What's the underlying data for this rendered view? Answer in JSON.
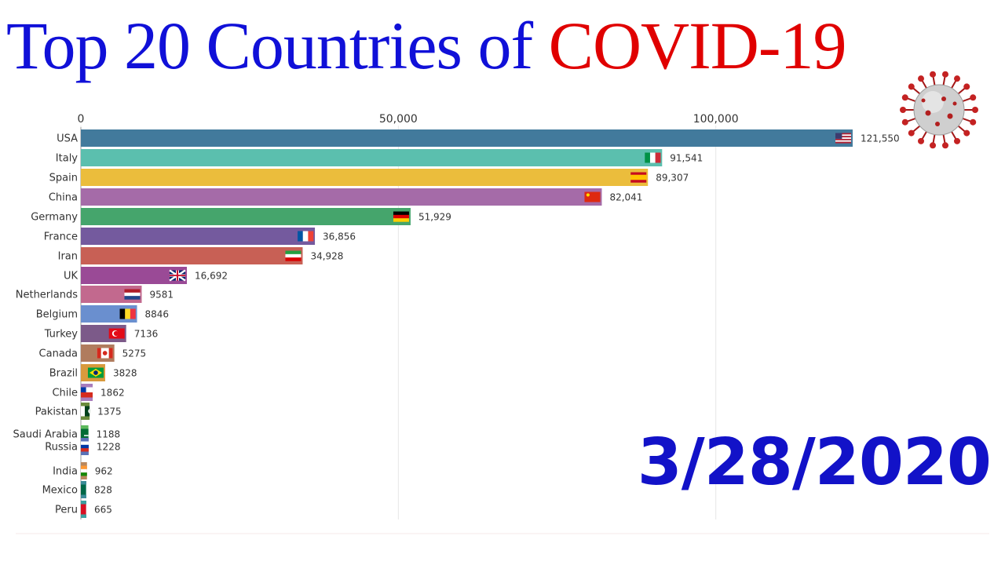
{
  "title": {
    "part1": "Top 20 Countries of ",
    "part2": "COVID-19"
  },
  "date": "3/28/2020",
  "colors": {
    "title_blue": "#1010d8",
    "title_red": "#e00000",
    "date_blue": "#1212c8"
  },
  "icons": [
    "coronavirus-icon",
    "flag-icon"
  ],
  "chart_data": {
    "type": "bar",
    "orientation": "horizontal",
    "title": "Top 20 Countries of COVID-19",
    "xlim": [
      0,
      125000
    ],
    "xticks": [
      0,
      50000,
      100000
    ],
    "xtick_labels": [
      "0",
      "50,000",
      "100,000"
    ],
    "grid": true,
    "categories": [
      "USA",
      "Italy",
      "Spain",
      "China",
      "Germany",
      "France",
      "Iran",
      "UK",
      "Netherlands",
      "Belgium",
      "Turkey",
      "Canada",
      "Brazil",
      "Chile",
      "Pakistan",
      "Saudi Arabia",
      "Russia",
      "India",
      "Mexico",
      "Peru"
    ],
    "values": [
      121550,
      91541,
      89307,
      82041,
      51929,
      36856,
      34928,
      16692,
      9581,
      8846,
      7136,
      5275,
      3828,
      1862,
      1375,
      1188,
      1228,
      962,
      828,
      665
    ],
    "value_labels": [
      "121,550",
      "91,541",
      "89,307",
      "82,041",
      "51,929",
      "36,856",
      "34,928",
      "16,692",
      "9581",
      "8846",
      "7136",
      "5275",
      "3828",
      "1862",
      "1375",
      "1188",
      "1228",
      "962",
      "828",
      "665"
    ],
    "bar_colors": [
      "#427a9c",
      "#5bbfae",
      "#ebbd3c",
      "#a56ba8",
      "#45a56c",
      "#745a9e",
      "#c86055",
      "#9a4a96",
      "#c2698e",
      "#6a8fcf",
      "#7c5a89",
      "#b07c5e",
      "#d99a3c",
      "#a97dbc",
      "#6b8c3c",
      "#5cb85c",
      "#5a72b8",
      "#b9885e",
      "#3c8c98",
      "#3ca0a0"
    ],
    "flags": [
      "us",
      "it",
      "es",
      "cn",
      "de",
      "fr",
      "ir",
      "gb",
      "nl",
      "be",
      "tr",
      "ca",
      "br",
      "cl",
      "pk",
      "sa",
      "ru",
      "in",
      "mx",
      "pe"
    ]
  }
}
